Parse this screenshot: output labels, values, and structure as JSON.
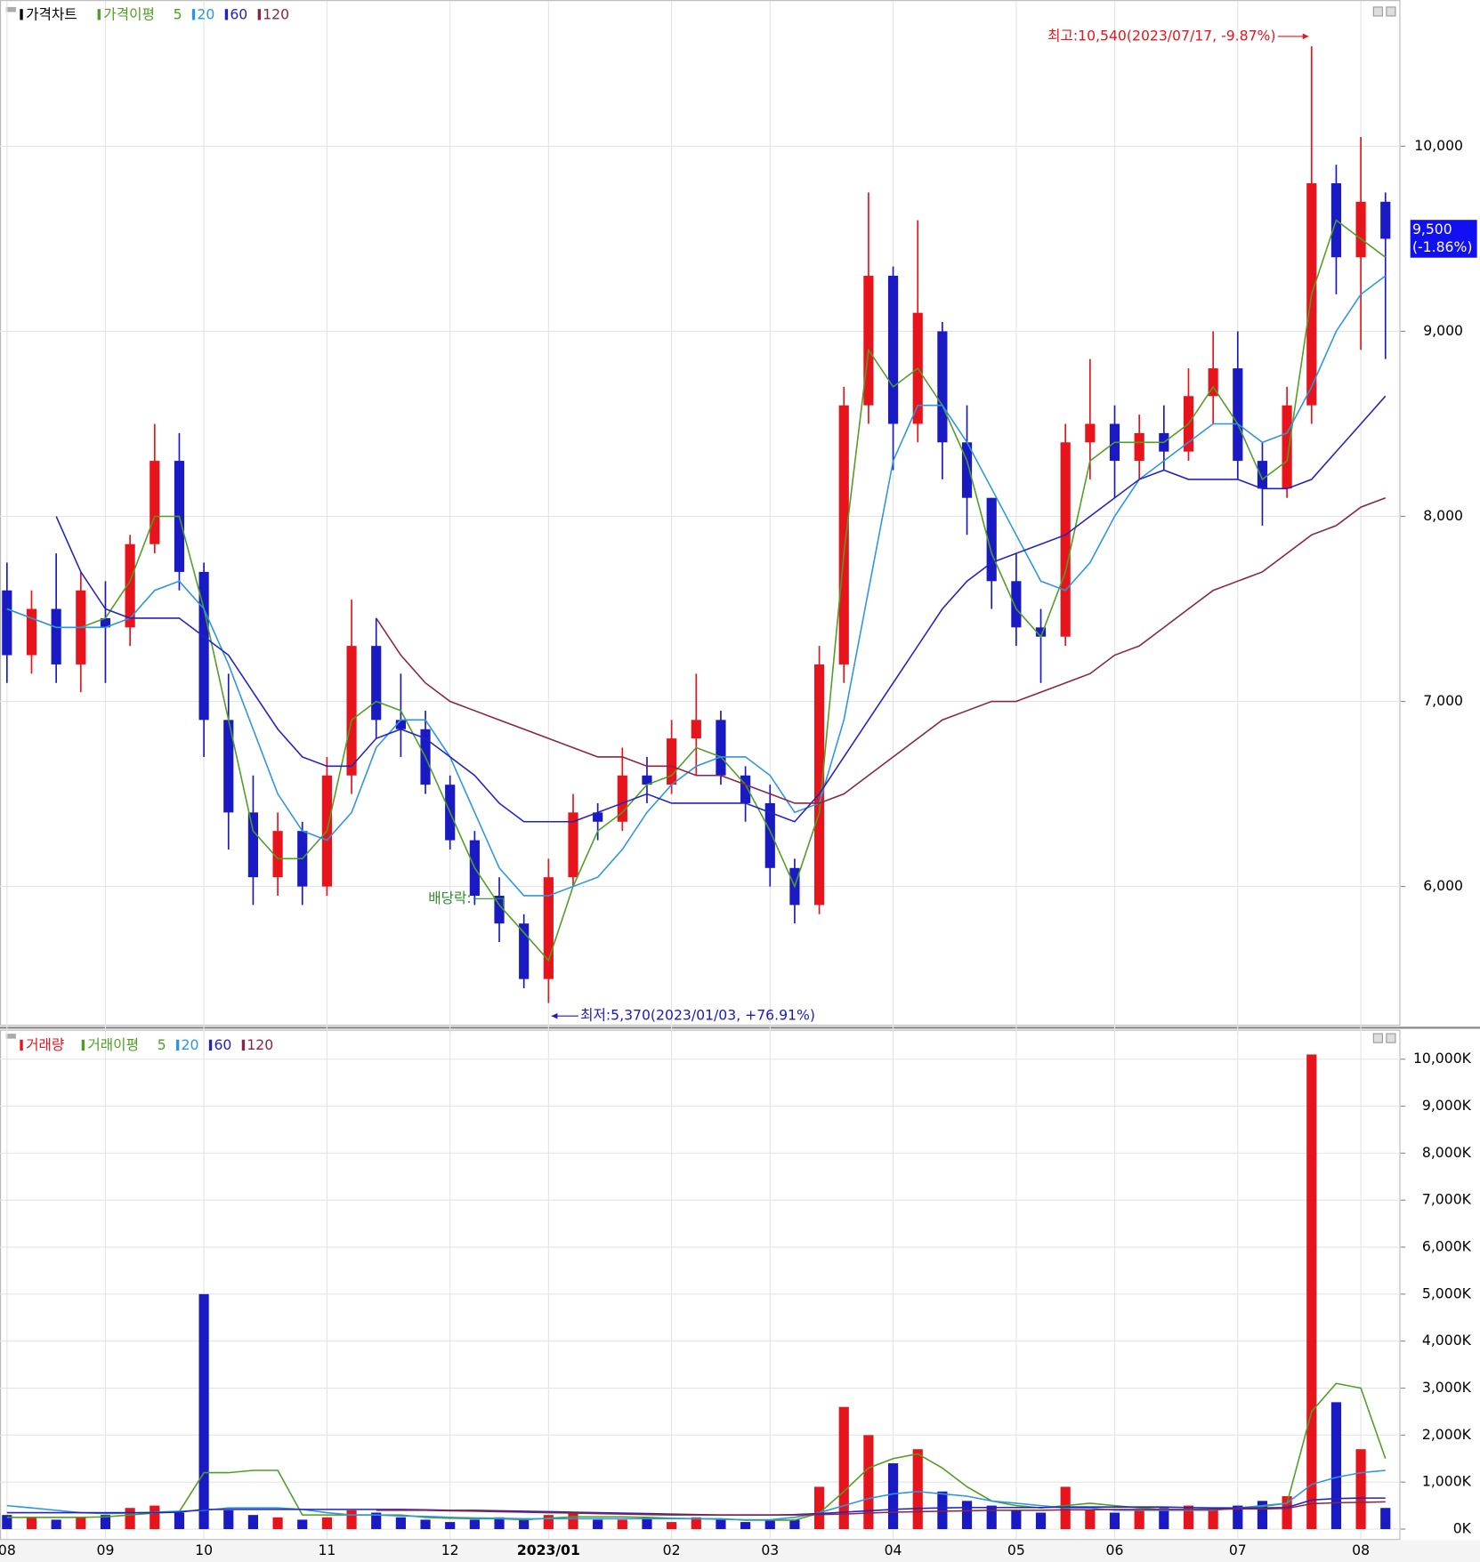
{
  "chart_data": [
    {
      "type": "candlestick",
      "legend_title": "가격차트",
      "ma_title": "가격이평",
      "categories": [
        "08",
        null,
        null,
        null,
        "09",
        null,
        null,
        null,
        "10",
        null,
        null,
        null,
        null,
        "11",
        null,
        null,
        null,
        null,
        "12",
        null,
        null,
        null,
        "2023/01",
        null,
        null,
        null,
        null,
        "02",
        null,
        null,
        null,
        "03",
        null,
        null,
        null,
        null,
        "04",
        null,
        null,
        null,
        null,
        "05",
        null,
        null,
        null,
        "06",
        null,
        null,
        null,
        null,
        "07",
        null,
        null,
        null,
        null,
        "08",
        null
      ],
      "open": [
        7600,
        7250,
        7500,
        7200,
        7450,
        7400,
        7850,
        8300,
        7700,
        6900,
        6400,
        6050,
        6300,
        6000,
        6600,
        7300,
        6900,
        6850,
        6550,
        6250,
        5950,
        5800,
        5500,
        6050,
        6400,
        6350,
        6600,
        6550,
        6800,
        6900,
        6600,
        6450,
        6100,
        5900,
        7200,
        8600,
        9300,
        8500,
        9000,
        8400,
        8100,
        7650,
        7400,
        7350,
        8400,
        8500,
        8300,
        8450,
        8350,
        8650,
        8800,
        8300,
        8150,
        8600,
        9800,
        9400,
        9700
      ],
      "high": [
        7750,
        7600,
        7800,
        7700,
        7650,
        7900,
        8500,
        8450,
        7750,
        7150,
        6600,
        6400,
        6350,
        6700,
        7550,
        7450,
        7150,
        6950,
        6600,
        6300,
        6050,
        5850,
        6150,
        6500,
        6450,
        6750,
        6700,
        6900,
        7150,
        6950,
        6650,
        6550,
        6150,
        7300,
        8700,
        9750,
        9350,
        9600,
        9050,
        8600,
        8100,
        7800,
        7500,
        8500,
        8850,
        8600,
        8550,
        8600,
        8800,
        9000,
        9000,
        8400,
        8700,
        10540,
        9900,
        10050,
        9750
      ],
      "low": [
        7100,
        7150,
        7100,
        7050,
        7100,
        7300,
        7800,
        7600,
        6700,
        6200,
        5900,
        5950,
        5900,
        5950,
        6500,
        6800,
        6700,
        6500,
        6200,
        5900,
        5700,
        5450,
        5370,
        6000,
        6250,
        6300,
        6450,
        6500,
        6600,
        6550,
        6350,
        6000,
        5800,
        5850,
        7100,
        8500,
        8250,
        8400,
        8200,
        7900,
        7500,
        7300,
        7100,
        7300,
        8200,
        8100,
        8200,
        8250,
        8300,
        8500,
        8200,
        7950,
        8100,
        8500,
        9200,
        8900,
        8850
      ],
      "close": [
        7250,
        7500,
        7200,
        7600,
        7400,
        7850,
        8300,
        7700,
        6900,
        6400,
        6050,
        6300,
        6000,
        6600,
        7300,
        6900,
        6850,
        6550,
        6250,
        5950,
        5800,
        5500,
        6050,
        6400,
        6350,
        6600,
        6550,
        6800,
        6900,
        6600,
        6450,
        6100,
        5900,
        7200,
        8600,
        9300,
        8500,
        9100,
        8400,
        8100,
        7650,
        7400,
        7350,
        8400,
        8500,
        8300,
        8450,
        8350,
        8650,
        8800,
        8300,
        8150,
        8600,
        9800,
        9400,
        9700,
        9500
      ],
      "up_color": "#e8141b",
      "down_color": "#1a1ac4",
      "ma": [
        {
          "name": "5",
          "color": "#4f9e22",
          "values": [
            7500,
            7450,
            7400,
            7400,
            7450,
            7650,
            8000,
            8000,
            7500,
            6900,
            6300,
            6150,
            6150,
            6300,
            6900,
            7000,
            6950,
            6700,
            6400,
            6100,
            5900,
            5750,
            5600,
            6000,
            6300,
            6400,
            6550,
            6600,
            6750,
            6700,
            6550,
            6300,
            6000,
            6400,
            7800,
            8900,
            8700,
            8800,
            8600,
            8300,
            7800,
            7500,
            7350,
            7700,
            8300,
            8400,
            8400,
            8400,
            8500,
            8700,
            8500,
            8200,
            8300,
            9200,
            9600,
            9500,
            9400
          ]
        },
        {
          "name": "20",
          "color": "#2b95e0",
          "values": [
            7500,
            7450,
            7400,
            7400,
            7400,
            7450,
            7600,
            7650,
            7500,
            7200,
            6850,
            6500,
            6300,
            6250,
            6400,
            6750,
            6900,
            6900,
            6700,
            6400,
            6100,
            5950,
            5950,
            6000,
            6050,
            6200,
            6400,
            6550,
            6650,
            6700,
            6700,
            6600,
            6400,
            6450,
            6900,
            7600,
            8300,
            8600,
            8600,
            8400,
            8150,
            7900,
            7650,
            7600,
            7750,
            8000,
            8200,
            8300,
            8400,
            8500,
            8500,
            8400,
            8450,
            8700,
            9000,
            9200,
            9300
          ]
        },
        {
          "name": "60",
          "color": "#2222c0",
          "values": [
            null,
            null,
            8000,
            7700,
            7500,
            7450,
            7450,
            7450,
            7350,
            7250,
            7050,
            6850,
            6700,
            6650,
            6650,
            6800,
            6850,
            6800,
            6700,
            6600,
            6450,
            6350,
            6350,
            6350,
            6400,
            6450,
            6500,
            6450,
            6450,
            6450,
            6450,
            6400,
            6350,
            6500,
            6700,
            6900,
            7100,
            7300,
            7500,
            7650,
            7750,
            7800,
            7850,
            7900,
            8000,
            8100,
            8200,
            8250,
            8200,
            8200,
            8200,
            8150,
            8150,
            8200,
            8350,
            8500,
            8650
          ]
        },
        {
          "name": "120",
          "color": "#8a2444",
          "values": [
            null,
            null,
            null,
            null,
            null,
            null,
            null,
            null,
            null,
            null,
            null,
            null,
            null,
            null,
            null,
            7450,
            7250,
            7100,
            7000,
            6950,
            6900,
            6850,
            6800,
            6750,
            6700,
            6700,
            6650,
            6650,
            6600,
            6600,
            6550,
            6500,
            6450,
            6450,
            6500,
            6600,
            6700,
            6800,
            6900,
            6950,
            7000,
            7000,
            7050,
            7100,
            7150,
            7250,
            7300,
            7400,
            7500,
            7600,
            7650,
            7700,
            7800,
            7900,
            7950,
            8050,
            8100
          ]
        }
      ],
      "ylim": [
        5253,
        10763
      ],
      "yticks": [
        {
          "value": 6000,
          "label": "6,000"
        },
        {
          "value": 7000,
          "label": "7,000"
        },
        {
          "value": 8000,
          "label": "8,000"
        },
        {
          "value": 9000,
          "label": "9,000"
        },
        {
          "value": 10000,
          "label": "10,000"
        }
      ],
      "grid": true,
      "annotations": {
        "high": "최고:10,540(2023/07/17, -9.87%)",
        "low": "최저:5,370(2023/01/03, +76.91%)",
        "dividend": "배당락:",
        "last_price": "9,500",
        "last_change": "(-1.86%)"
      }
    },
    {
      "type": "volume",
      "legend_title": "거래량",
      "ma_title": "거래이평",
      "values": [
        300,
        250,
        200,
        250,
        300,
        450,
        500,
        350,
        5000,
        400,
        300,
        250,
        200,
        250,
        400,
        350,
        250,
        200,
        150,
        200,
        250,
        200,
        300,
        350,
        200,
        200,
        250,
        150,
        250,
        200,
        150,
        200,
        200,
        900,
        2600,
        2000,
        1400,
        1700,
        800,
        600,
        500,
        400,
        350,
        900,
        400,
        350,
        400,
        450,
        500,
        400,
        500,
        600,
        700,
        10100,
        2700,
        1700,
        450
      ],
      "series": [
        {
          "name": "5",
          "color": "#4f9e22",
          "values": [
            250,
            250,
            250,
            250,
            260,
            300,
            340,
            370,
            1200,
            1200,
            1250,
            1250,
            300,
            300,
            300,
            300,
            300,
            250,
            230,
            220,
            220,
            200,
            230,
            260,
            260,
            260,
            250,
            230,
            220,
            220,
            190,
            190,
            190,
            340,
            800,
            1300,
            1500,
            1600,
            1300,
            900,
            600,
            500,
            450,
            500,
            550,
            500,
            450,
            420,
            420,
            430,
            450,
            480,
            550,
            2500,
            3100,
            3000,
            1500
          ]
        },
        {
          "name": "20",
          "color": "#2b95e0",
          "values": [
            500,
            450,
            400,
            350,
            330,
            340,
            360,
            380,
            400,
            450,
            450,
            450,
            420,
            350,
            300,
            300,
            280,
            270,
            250,
            240,
            230,
            220,
            220,
            220,
            220,
            220,
            220,
            220,
            220,
            210,
            200,
            200,
            250,
            350,
            500,
            650,
            750,
            800,
            750,
            700,
            600,
            550,
            500,
            450,
            450,
            400,
            400,
            400,
            400,
            400,
            450,
            500,
            550,
            950,
            1100,
            1200,
            1250
          ]
        },
        {
          "name": "60",
          "color": "#2222c0",
          "values": [
            350,
            350,
            350,
            350,
            350,
            350,
            350,
            360,
            420,
            420,
            420,
            420,
            420,
            420,
            420,
            420,
            420,
            410,
            400,
            400,
            390,
            380,
            370,
            360,
            350,
            340,
            330,
            320,
            310,
            300,
            300,
            300,
            310,
            330,
            360,
            390,
            420,
            440,
            450,
            460,
            460,
            460,
            460,
            470,
            470,
            470,
            470,
            470,
            460,
            450,
            450,
            450,
            460,
            620,
            650,
            660,
            660
          ]
        },
        {
          "name": "120",
          "color": "#8a2444",
          "values": [
            null,
            null,
            null,
            null,
            null,
            null,
            null,
            null,
            null,
            null,
            null,
            null,
            null,
            null,
            null,
            400,
            400,
            400,
            390,
            380,
            370,
            360,
            350,
            340,
            330,
            320,
            310,
            300,
            300,
            300,
            300,
            300,
            300,
            310,
            320,
            340,
            360,
            370,
            380,
            390,
            400,
            400,
            400,
            410,
            410,
            420,
            420,
            420,
            420,
            420,
            430,
            430,
            440,
            540,
            560,
            570,
            580
          ]
        }
      ],
      "ylim": [
        0,
        10500
      ],
      "yticks": [
        {
          "value": 0,
          "label": "0K"
        },
        {
          "value": 1000,
          "label": "1,000K"
        },
        {
          "value": 2000,
          "label": "2,000K"
        },
        {
          "value": 3000,
          "label": "3,000K"
        },
        {
          "value": 4000,
          "label": "4,000K"
        },
        {
          "value": 5000,
          "label": "5,000K"
        },
        {
          "value": 6000,
          "label": "6,000K"
        },
        {
          "value": 7000,
          "label": "7,000K"
        },
        {
          "value": 8000,
          "label": "8,000K"
        },
        {
          "value": 9000,
          "label": "9,000K"
        },
        {
          "value": 10000,
          "label": "10,000K"
        }
      ],
      "grid": true
    }
  ]
}
